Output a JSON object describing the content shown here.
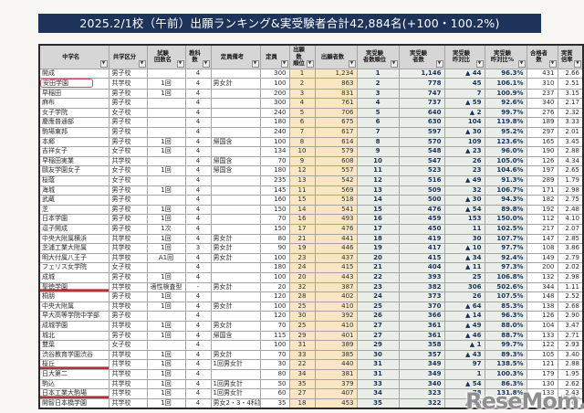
{
  "title": "2025.2/1校（午前）出願ランキング&実受験者合計42,884名(+100・100.2%)",
  "watermark": {
    "text": "ReseMom.",
    "furigana": "リセマム"
  },
  "colors": {
    "title_bar": "#1d3359",
    "header_bg": "#d6d6d6",
    "applicant_cols_bg": "#fbe6c3",
    "examinee_cols_bg": "#e9efe8",
    "examinee_text": "#17305f",
    "annotation_red": "#c24052",
    "watermark_gray": "#8f8f8f"
  },
  "table": {
    "columns": [
      {
        "key": "name",
        "label": "中学名"
      },
      {
        "key": "type",
        "label": "共学区分"
      },
      {
        "key": "round",
        "label": "試験\n回数名"
      },
      {
        "key": "subjects",
        "label": "教科数"
      },
      {
        "key": "note",
        "label": "定員備考"
      },
      {
        "key": "capacity",
        "label": "定員"
      },
      {
        "key": "app_rank",
        "label": "出願数\n順位"
      },
      {
        "key": "applicants",
        "label": "出願者数"
      },
      {
        "key": "exam_rank",
        "label": "実受験\n者数順位"
      },
      {
        "key": "examinees",
        "label": "実受験\n者数"
      },
      {
        "key": "yoy",
        "label": "実受験\n昨対比"
      },
      {
        "key": "yoy_pct",
        "label": "実受験\n昨対比%"
      },
      {
        "key": "passers",
        "label": "合格者数"
      },
      {
        "key": "ratio",
        "label": "実質倍率"
      }
    ],
    "rows": [
      {
        "name": "開成",
        "type": "男子校",
        "round": "",
        "subjects": "4",
        "note": "",
        "capacity": "300",
        "app_rank": "1",
        "applicants": "1,234",
        "exam_rank": "1",
        "examinees": "1,146",
        "yoy": "▲ 44",
        "yoy_pct": "96.3%",
        "passers": "431",
        "ratio": "2.66",
        "annotation": ""
      },
      {
        "name": "安田学園",
        "type": "共学校",
        "round": "1回",
        "subjects": "4",
        "note": "男女計",
        "capacity": "100",
        "app_rank": "2",
        "applicants": "863",
        "exam_rank": "2",
        "examinees": "778",
        "yoy": "45",
        "yoy_pct": "106.1%",
        "passers": "310",
        "ratio": "2.51",
        "annotation": "box"
      },
      {
        "name": "早稲田",
        "type": "男子校",
        "round": "1回",
        "subjects": "4",
        "note": "",
        "capacity": "200",
        "app_rank": "3",
        "applicants": "831",
        "exam_rank": "3",
        "examinees": "747",
        "yoy": "7",
        "yoy_pct": "100.9%",
        "passers": "237",
        "ratio": "3.15",
        "annotation": ""
      },
      {
        "name": "麻布",
        "type": "男子校",
        "round": "",
        "subjects": "4",
        "note": "",
        "capacity": "300",
        "app_rank": "4",
        "applicants": "761",
        "exam_rank": "4",
        "examinees": "737",
        "yoy": "▲ 59",
        "yoy_pct": "92.6%",
        "passers": "340",
        "ratio": "2.17",
        "annotation": ""
      },
      {
        "name": "女子学院",
        "type": "女子校",
        "round": "",
        "subjects": "4",
        "note": "",
        "capacity": "240",
        "app_rank": "5",
        "applicants": "706",
        "exam_rank": "5",
        "examinees": "640",
        "yoy": "▲ 2",
        "yoy_pct": "99.7%",
        "passers": "276",
        "ratio": "2.32",
        "annotation": ""
      },
      {
        "name": "慶應普通部",
        "type": "男子校",
        "round": "",
        "subjects": "4",
        "note": "",
        "capacity": "180",
        "app_rank": "6",
        "applicants": "675",
        "exam_rank": "6",
        "examinees": "630",
        "yoy": "104",
        "yoy_pct": "119.8%",
        "passers": "189",
        "ratio": "3.33",
        "annotation": ""
      },
      {
        "name": "駒場東邦",
        "type": "男子校",
        "round": "",
        "subjects": "4",
        "note": "",
        "capacity": "240",
        "app_rank": "7",
        "applicants": "617",
        "exam_rank": "7",
        "examinees": "597",
        "yoy": "▲ 30",
        "yoy_pct": "95.2%",
        "passers": "297",
        "ratio": "2.01",
        "annotation": ""
      },
      {
        "name": "本郷",
        "type": "男子校",
        "round": "1回",
        "subjects": "4",
        "note": "帰国含",
        "capacity": "100",
        "app_rank": "8",
        "applicants": "614",
        "exam_rank": "8",
        "examinees": "570",
        "yoy": "109",
        "yoy_pct": "123.6%",
        "passers": "165",
        "ratio": "3.45",
        "annotation": ""
      },
      {
        "name": "吉祥女子",
        "type": "女子校",
        "round": "1回",
        "subjects": "4",
        "note": "",
        "capacity": "134",
        "app_rank": "10",
        "applicants": "579",
        "exam_rank": "9",
        "examinees": "548",
        "yoy": "▲ 23",
        "yoy_pct": "96.0%",
        "passers": "190",
        "ratio": "2.88",
        "annotation": ""
      },
      {
        "name": "早稲田実業",
        "type": "共学校",
        "round": "",
        "subjects": "4",
        "note": "帰国含",
        "capacity": "70",
        "app_rank": "9",
        "applicants": "608",
        "exam_rank": "10",
        "examinees": "547",
        "yoy": "26",
        "yoy_pct": "105.0%",
        "passers": "126",
        "ratio": "4.34",
        "annotation": ""
      },
      {
        "name": "鷗友学園女子",
        "type": "女子校",
        "round": "1回",
        "subjects": "4",
        "note": "帰国含",
        "capacity": "180",
        "app_rank": "12",
        "applicants": "557",
        "exam_rank": "11",
        "examinees": "523",
        "yoy": "23",
        "yoy_pct": "104.6%",
        "passers": "197",
        "ratio": "2.65",
        "annotation": ""
      },
      {
        "name": "桜蔭",
        "type": "女子校",
        "round": "",
        "subjects": "4",
        "note": "",
        "capacity": "235",
        "app_rank": "13",
        "applicants": "542",
        "exam_rank": "12",
        "examinees": "516",
        "yoy": "▲ 49",
        "yoy_pct": "91.3%",
        "passers": "289",
        "ratio": "1.79",
        "annotation": ""
      },
      {
        "name": "海城",
        "type": "男子校",
        "round": "1回",
        "subjects": "4",
        "note": "",
        "capacity": "145",
        "app_rank": "11",
        "applicants": "569",
        "exam_rank": "13",
        "examinees": "509",
        "yoy": "32",
        "yoy_pct": "106.7%",
        "passers": "171",
        "ratio": "2.98",
        "annotation": ""
      },
      {
        "name": "武蔵",
        "type": "男子校",
        "round": "",
        "subjects": "4",
        "note": "",
        "capacity": "160",
        "app_rank": "15",
        "applicants": "518",
        "exam_rank": "14",
        "examinees": "500",
        "yoy": "▲ 30",
        "yoy_pct": "94.3%",
        "passers": "182",
        "ratio": "2.75",
        "annotation": ""
      },
      {
        "name": "芝",
        "type": "男子校",
        "round": "1回",
        "subjects": "4",
        "note": "",
        "capacity": "150",
        "app_rank": "14",
        "applicants": "541",
        "exam_rank": "15",
        "examinees": "476",
        "yoy": "▲ 54",
        "yoy_pct": "89.8%",
        "passers": "192",
        "ratio": "2.48",
        "annotation": ""
      },
      {
        "name": "日本学園",
        "type": "男子校",
        "round": "1回",
        "subjects": "4",
        "note": "",
        "capacity": "70",
        "app_rank": "16",
        "applicants": "493",
        "exam_rank": "16",
        "examinees": "459",
        "yoy": "153",
        "yoy_pct": "150.0%",
        "passers": "112",
        "ratio": "4.10",
        "annotation": ""
      },
      {
        "name": "逗子開成",
        "type": "男子校",
        "round": "1次",
        "subjects": "4",
        "note": "",
        "capacity": "150",
        "app_rank": "17",
        "applicants": "476",
        "exam_rank": "17",
        "examinees": "450",
        "yoy": "11",
        "yoy_pct": "102.5%",
        "passers": "217",
        "ratio": "2.07",
        "annotation": ""
      },
      {
        "name": "中央大附属横浜",
        "type": "共学校",
        "round": "1回",
        "subjects": "4",
        "note": "男女計",
        "capacity": "80",
        "app_rank": "21",
        "applicants": "441",
        "exam_rank": "18",
        "examinees": "419",
        "yoy": "30",
        "yoy_pct": "107.7%",
        "passers": "147",
        "ratio": "2.85",
        "annotation": ""
      },
      {
        "name": "芝浦工業大附属",
        "type": "共学校",
        "round": "1回",
        "subjects": "3",
        "note": "男女計",
        "capacity": "90",
        "app_rank": "19",
        "applicants": "446",
        "exam_rank": "19",
        "examinees": "417",
        "yoy": "▲ 10",
        "yoy_pct": "97.7%",
        "passers": "108",
        "ratio": "3.86",
        "annotation": ""
      },
      {
        "name": "明大付属八王子",
        "type": "共学校",
        "round": "A1回",
        "subjects": "4",
        "note": "男女計",
        "capacity": "100",
        "app_rank": "23",
        "applicants": "437",
        "exam_rank": "20",
        "examinees": "415",
        "yoy": "▲ 34",
        "yoy_pct": "92.4%",
        "passers": "149",
        "ratio": "2.79",
        "annotation": ""
      },
      {
        "name": "フェリス女学院",
        "type": "女子校",
        "round": "",
        "subjects": "4",
        "note": "",
        "capacity": "180",
        "app_rank": "24",
        "applicants": "415",
        "exam_rank": "21",
        "examinees": "404",
        "yoy": "▲ 11",
        "yoy_pct": "97.3%",
        "passers": "200",
        "ratio": "2.02",
        "annotation": ""
      },
      {
        "name": "成城",
        "type": "男子校",
        "round": "1回",
        "subjects": "4",
        "note": "",
        "capacity": "100",
        "app_rank": "20",
        "applicants": "443",
        "exam_rank": "22",
        "examinees": "393",
        "yoy": "25",
        "yoy_pct": "106.8%",
        "passers": "132",
        "ratio": "2.98",
        "annotation": ""
      },
      {
        "name": "聖徳学園",
        "type": "共学校",
        "round": "適性検査型",
        "subjects": "-",
        "note": "男女計",
        "capacity": "20",
        "app_rank": "32",
        "applicants": "387",
        "exam_rank": "23",
        "examinees": "382",
        "yoy": "306",
        "yoy_pct": "502.6%",
        "passers": "344",
        "ratio": "1.11",
        "annotation": "underline"
      },
      {
        "name": "桐朋",
        "type": "男子校",
        "round": "1回",
        "subjects": "4",
        "note": "",
        "capacity": "120",
        "app_rank": "28",
        "applicants": "402",
        "exam_rank": "24",
        "examinees": "373",
        "yoy": "26",
        "yoy_pct": "107.5%",
        "passers": "148",
        "ratio": "2.52",
        "annotation": ""
      },
      {
        "name": "中央大附属",
        "type": "共学校",
        "round": "1回",
        "subjects": "4",
        "note": "男女計",
        "capacity": "100",
        "app_rank": "25",
        "applicants": "410",
        "exam_rank": "25",
        "examinees": "370",
        "yoy": "▲ 64",
        "yoy_pct": "85.3%",
        "passers": "138",
        "ratio": "2.68",
        "annotation": ""
      },
      {
        "name": "早大高等学院中学部",
        "type": "男子校",
        "round": "",
        "subjects": "4",
        "note": "",
        "capacity": "120",
        "app_rank": "30",
        "applicants": "392",
        "exam_rank": "26",
        "examinees": "366",
        "yoy": "▲ 14",
        "yoy_pct": "96.3%",
        "passers": "126",
        "ratio": "2.90",
        "annotation": ""
      },
      {
        "name": "成城学園",
        "type": "共学校",
        "round": "1回",
        "subjects": "4",
        "note": "男女計",
        "capacity": "70",
        "app_rank": "25",
        "applicants": "410",
        "exam_rank": "27",
        "examinees": "361",
        "yoy": "▲ 49",
        "yoy_pct": "88.0%",
        "passers": "104",
        "ratio": "3.47",
        "annotation": ""
      },
      {
        "name": "城北",
        "type": "男子校",
        "round": "1回",
        "subjects": "4",
        "note": "帰国含",
        "capacity": "115",
        "app_rank": "29",
        "applicants": "401",
        "exam_rank": "27",
        "examinees": "361",
        "yoy": "▲ 46",
        "yoy_pct": "88.7%",
        "passers": "133",
        "ratio": "2.71",
        "annotation": ""
      },
      {
        "name": "雙葉",
        "type": "女子校",
        "round": "",
        "subjects": "4",
        "note": "",
        "capacity": "100",
        "app_rank": "31",
        "applicants": "389",
        "exam_rank": "29",
        "examinees": "358",
        "yoy": "▲ 1",
        "yoy_pct": "99.7%",
        "passers": "122",
        "ratio": "2.93",
        "annotation": ""
      },
      {
        "name": "渋谷教育学園渋谷",
        "type": "共学校",
        "round": "1回",
        "subjects": "4",
        "note": "男女計",
        "capacity": "70",
        "app_rank": "33",
        "applicants": "385",
        "exam_rank": "30",
        "examinees": "357",
        "yoy": "▲ 43",
        "yoy_pct": "89.3%",
        "passers": "105",
        "ratio": "3.40",
        "annotation": ""
      },
      {
        "name": "桜丘",
        "type": "共学校",
        "round": "1回",
        "subjects": "4",
        "note": "1回男女計",
        "capacity": "30",
        "app_rank": "22",
        "applicants": "440",
        "exam_rank": "31",
        "examinees": "349",
        "yoy": "97",
        "yoy_pct": "138.5%",
        "passers": "121",
        "ratio": "2.88",
        "annotation": "underline"
      },
      {
        "name": "日大第二",
        "type": "共学校",
        "round": "1回",
        "subjects": "4",
        "note": "",
        "capacity": "80",
        "app_rank": "34",
        "applicants": "381",
        "exam_rank": "31",
        "examinees": "349",
        "yoy": "1",
        "yoy_pct": "100.3%",
        "passers": "179",
        "ratio": "1.95",
        "annotation": ""
      },
      {
        "name": "駒込",
        "type": "共学校",
        "round": "1回",
        "subjects": "4",
        "note": "1回男女計",
        "capacity": "50",
        "app_rank": "35",
        "applicants": "379",
        "exam_rank": "33",
        "examinees": "340",
        "yoy": "▲ 54",
        "yoy_pct": "86.3%",
        "passers": "130",
        "ratio": "2.62",
        "annotation": ""
      },
      {
        "name": "日本工業大駒場",
        "type": "共学校",
        "round": "1回",
        "subjects": "4",
        "note": "1回男女計",
        "capacity": "60",
        "app_rank": "27",
        "applicants": "407",
        "exam_rank": "34",
        "examinees": "323",
        "yoy": "78",
        "yoy_pct": "131.8%",
        "passers": "133",
        "ratio": "2.43",
        "annotation": "underline"
      },
      {
        "name": "開智日本橋学園",
        "type": "共学校",
        "round": "1回",
        "subjects": "4",
        "note": "男女2・3・4科計",
        "capacity": "35",
        "app_rank": "18",
        "applicants": "453",
        "exam_rank": "35",
        "examinees": "322",
        "yoy": "▲ 20",
        "yoy_pct": "94.2%",
        "passers": "123",
        "ratio": "2.62",
        "annotation": ""
      }
    ]
  }
}
